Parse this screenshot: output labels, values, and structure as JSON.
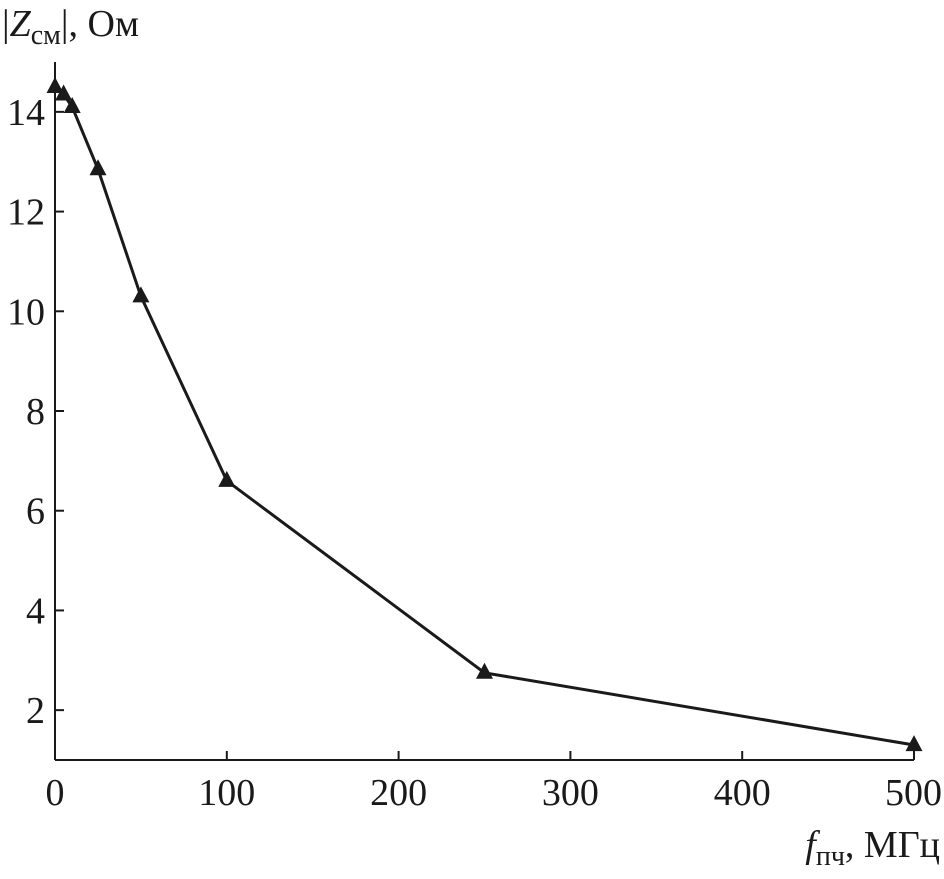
{
  "chart_data": {
    "type": "line",
    "title": "",
    "ylabel": {
      "bar_left": "|",
      "symbol": "Z",
      "subscript": "см",
      "bar_right": "|",
      "unit": ", Ом"
    },
    "xlabel": {
      "symbol": "f",
      "subscript": "пч",
      "unit": ", МГц"
    },
    "xlim": [
      0,
      500
    ],
    "ylim": [
      1,
      15
    ],
    "xticks": [
      0,
      100,
      200,
      300,
      400,
      500
    ],
    "yticks": [
      2,
      4,
      6,
      8,
      10,
      12,
      14
    ],
    "grid": false,
    "legend": "none",
    "marker": "triangle",
    "colors": {
      "line": "#1a1a1a",
      "axis": "#1a1a1a",
      "background": "#ffffff"
    },
    "series": [
      {
        "x": [
          0,
          5,
          10,
          25,
          50,
          100,
          250,
          500
        ],
        "y": [
          14.5,
          14.35,
          14.1,
          12.85,
          10.3,
          6.6,
          2.75,
          1.3
        ]
      }
    ]
  }
}
